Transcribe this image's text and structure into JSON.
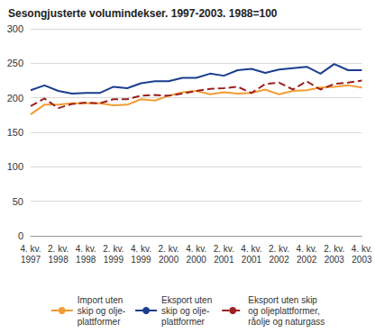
{
  "chart_data": {
    "type": "line",
    "title": "Sesongjusterte volumindekser. 1997-2003. 1988=100",
    "categories": [
      "4. kv.\n1997",
      null,
      "2. kv.\n1998",
      null,
      "4. kv.\n1998",
      null,
      "2. kv.\n1999",
      null,
      "4. kv.\n1999",
      null,
      "2. kv.\n2000",
      null,
      "4. kv.\n2000",
      null,
      "2. kv.\n2001",
      null,
      "4. kv.\n2001",
      null,
      "2. kv.\n2002",
      null,
      "4. kv.\n2002",
      null,
      "2. kv.\n2003",
      null,
      "4. kv.\n2003"
    ],
    "series": [
      {
        "name": "Import uten\nskip og olje-\nplattformer",
        "color": "#f39c33",
        "line_style": "solid",
        "values": [
          176,
          190,
          190,
          192,
          192,
          192,
          189,
          190,
          198,
          196,
          203,
          208,
          210,
          205,
          208,
          206,
          207,
          212,
          205,
          210,
          211,
          215,
          216,
          218,
          215
        ]
      },
      {
        "name": "Eksport uten\nskip og olje-\nplattformer",
        "color": "#1a3d8f",
        "line_style": "solid",
        "values": [
          211,
          218,
          210,
          206,
          207,
          207,
          216,
          214,
          221,
          224,
          224,
          229,
          229,
          235,
          232,
          240,
          242,
          236,
          241,
          243,
          245,
          235,
          249,
          240,
          240
        ]
      },
      {
        "name": "Eksport uten skip\nog oljeplattformer,\nråolje og naturgass",
        "color": "#9c1f1f",
        "line_style": "dashed",
        "values": [
          188,
          199,
          185,
          191,
          193,
          192,
          198,
          198,
          203,
          204,
          203,
          206,
          210,
          213,
          214,
          216,
          207,
          220,
          222,
          212,
          224,
          212,
          220,
          222,
          225
        ]
      }
    ],
    "ylim": [
      0,
      300
    ],
    "yticks": [
      0,
      50,
      100,
      150,
      200,
      250,
      300
    ],
    "grid": true,
    "legend": "bottom"
  }
}
